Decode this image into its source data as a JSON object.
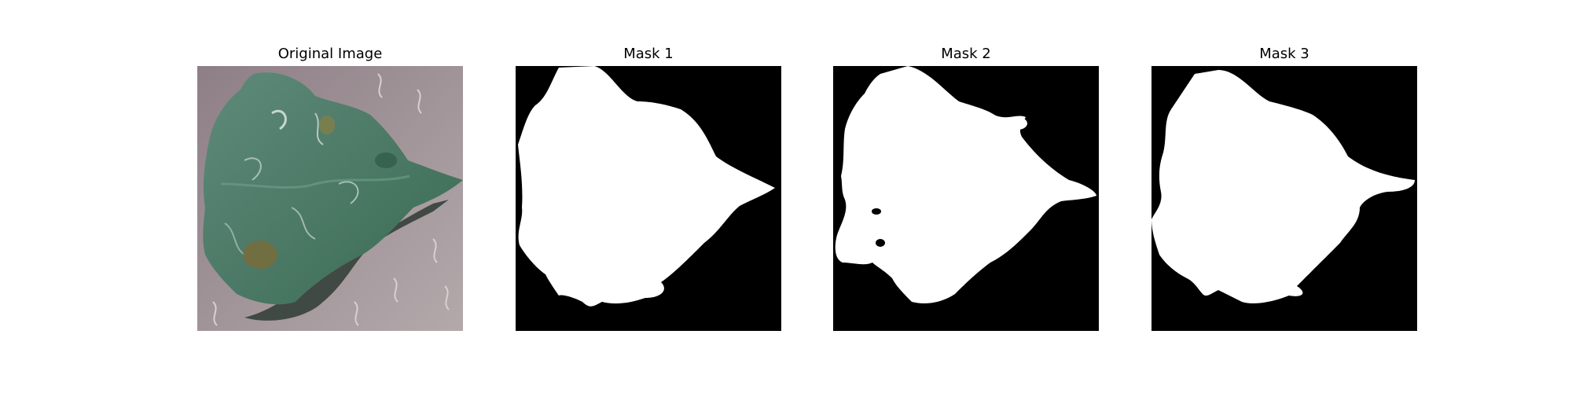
{
  "panels": [
    {
      "title": "Original Image",
      "kind": "photo"
    },
    {
      "title": "Mask 1",
      "kind": "mask"
    },
    {
      "title": "Mask 2",
      "kind": "mask"
    },
    {
      "title": "Mask 3",
      "kind": "mask"
    }
  ],
  "colors": {
    "background": "#ffffff",
    "mask_foreground": "#ffffff",
    "mask_background": "#000000",
    "leaf_green": "#4f7a68",
    "texture_gray": "#9e9396"
  }
}
